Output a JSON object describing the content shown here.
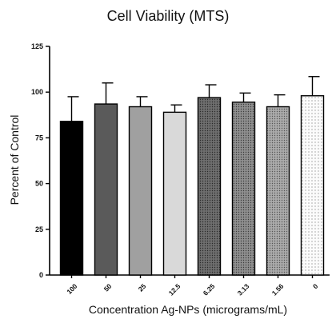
{
  "chart_data": {
    "type": "bar",
    "title": "Cell Viability (MTS)",
    "xlabel": "Concentration Ag-NPs (micrograms/mL)",
    "ylabel": "Percent of Control",
    "ylim": [
      0,
      125
    ],
    "yticks": [
      0,
      25,
      50,
      75,
      100,
      125
    ],
    "grid": false,
    "legend": "none",
    "categories": [
      "100",
      "50",
      "25",
      "12.5",
      "6.25",
      "3.13",
      "1.56",
      "0"
    ],
    "values": [
      84,
      93.5,
      92,
      89,
      97,
      94.5,
      92,
      98
    ],
    "error": [
      13.5,
      11.5,
      5.5,
      4,
      7,
      5,
      6.5,
      10.5
    ],
    "fills": [
      "#000000",
      "#5a5a5a",
      "#a0a0a0",
      "#d9d9d9",
      "#707070",
      "#8a8a8a",
      "#a5a5a5",
      "#f4f4f4"
    ],
    "patterns": [
      "solid",
      "solid",
      "solid",
      "solid",
      "dots",
      "dots",
      "dots",
      "dots"
    ]
  }
}
